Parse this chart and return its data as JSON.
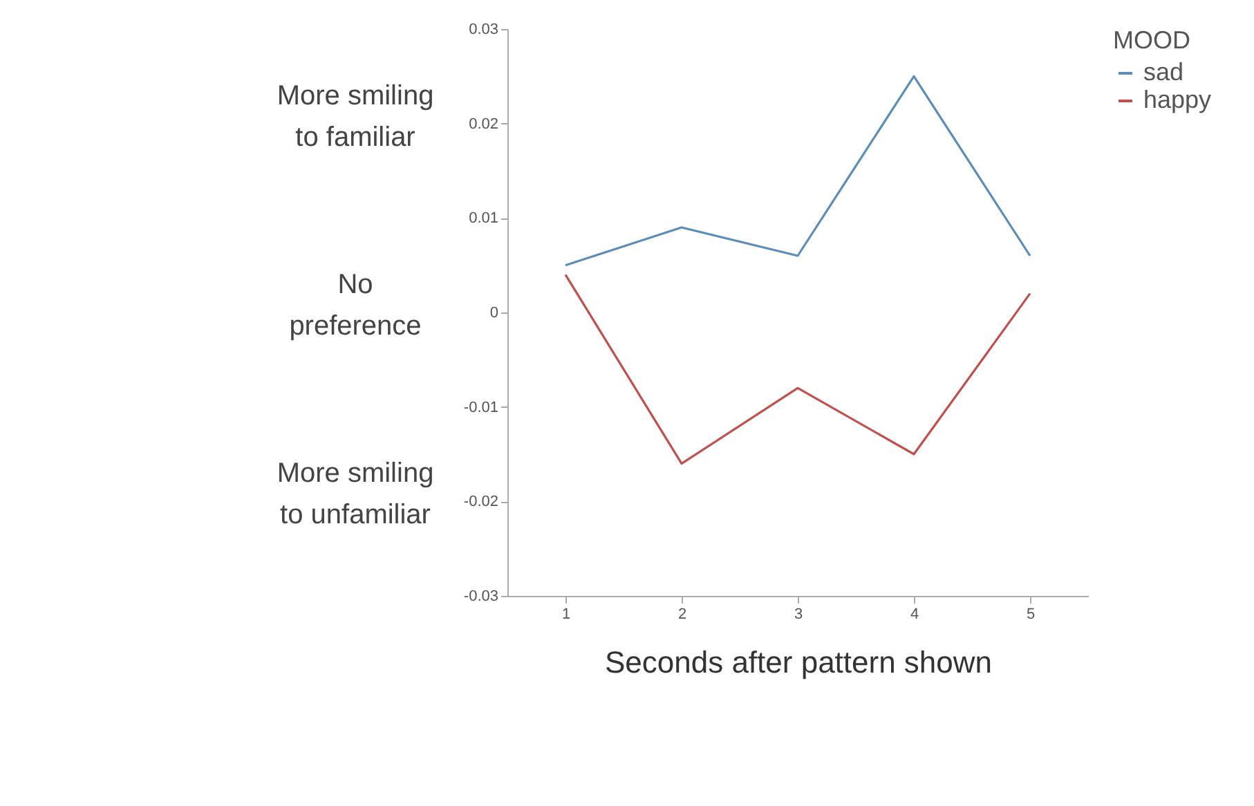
{
  "chart_data": {
    "type": "line",
    "xlabel": "Seconds after pattern shown",
    "legend_title": "MOOD",
    "categories": [
      "1",
      "2",
      "3",
      "4",
      "5"
    ],
    "series": [
      {
        "name": "sad",
        "color": "#5b8db8",
        "values": [
          0.005,
          0.009,
          0.006,
          0.025,
          0.006
        ]
      },
      {
        "name": "happy",
        "color": "#c0504d",
        "values": [
          0.004,
          -0.016,
          -0.008,
          -0.015,
          0.002
        ]
      }
    ],
    "ylim": [
      -0.03,
      0.03
    ],
    "yticks": [
      -0.03,
      -0.02,
      -0.01,
      0,
      0.01,
      0.02,
      0.03
    ],
    "grid": false,
    "legend": "right",
    "marker": "none",
    "line_style": "solid",
    "annotations": [
      "More smiling to familiar",
      "No preference",
      "More smiling to unfamiliar"
    ]
  }
}
